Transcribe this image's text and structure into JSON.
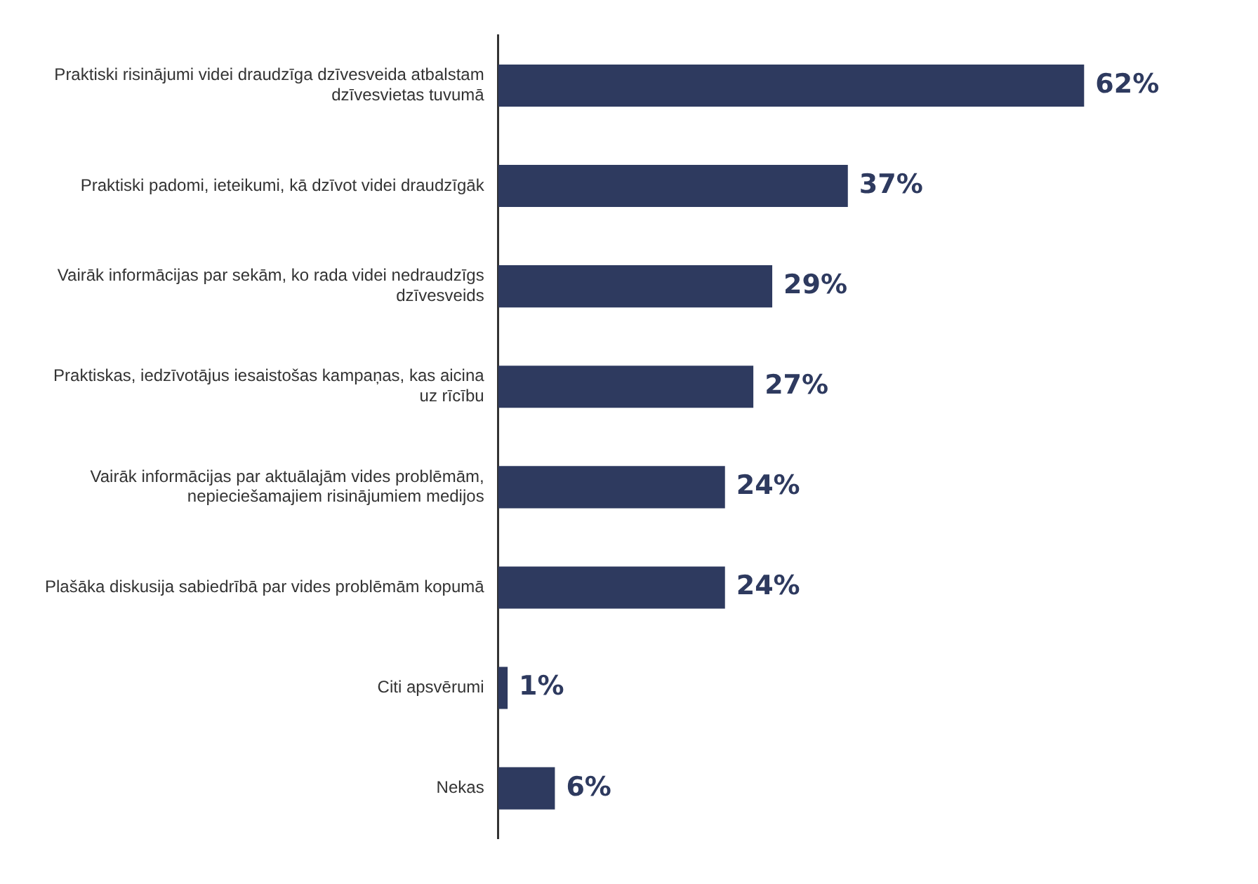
{
  "chart_data": {
    "type": "bar",
    "orientation": "horizontal",
    "categories": [
      "Praktiski risinājumi videi draudzīga dzīvesveida atbalstam dzīvesvietas tuvumā",
      "Praktiski padomi, ieteikumi, kā dzīvot videi draudzīgāk",
      "Vairāk informācijas par sekām, ko rada videi nedraudzīgs dzīvesveids",
      "Praktiskas, iedzīvotājus iesaistošas kampaņas, kas aicina uz rīcību",
      "Vairāk informācijas par aktuālajām vides problēmām, nepieciešamajiem risinājumiem medijos",
      "Plašāka diskusija sabiedrībā par vides problēmām kopumā",
      "Citi apsvērumi",
      "Nekas"
    ],
    "values": [
      62,
      37,
      29,
      27,
      24,
      24,
      1,
      6
    ],
    "value_labels": [
      "62%",
      "37%",
      "29%",
      "27%",
      "24%",
      "24%",
      "1%",
      "6%"
    ],
    "color": "#2e3a5f",
    "legend": false
  }
}
